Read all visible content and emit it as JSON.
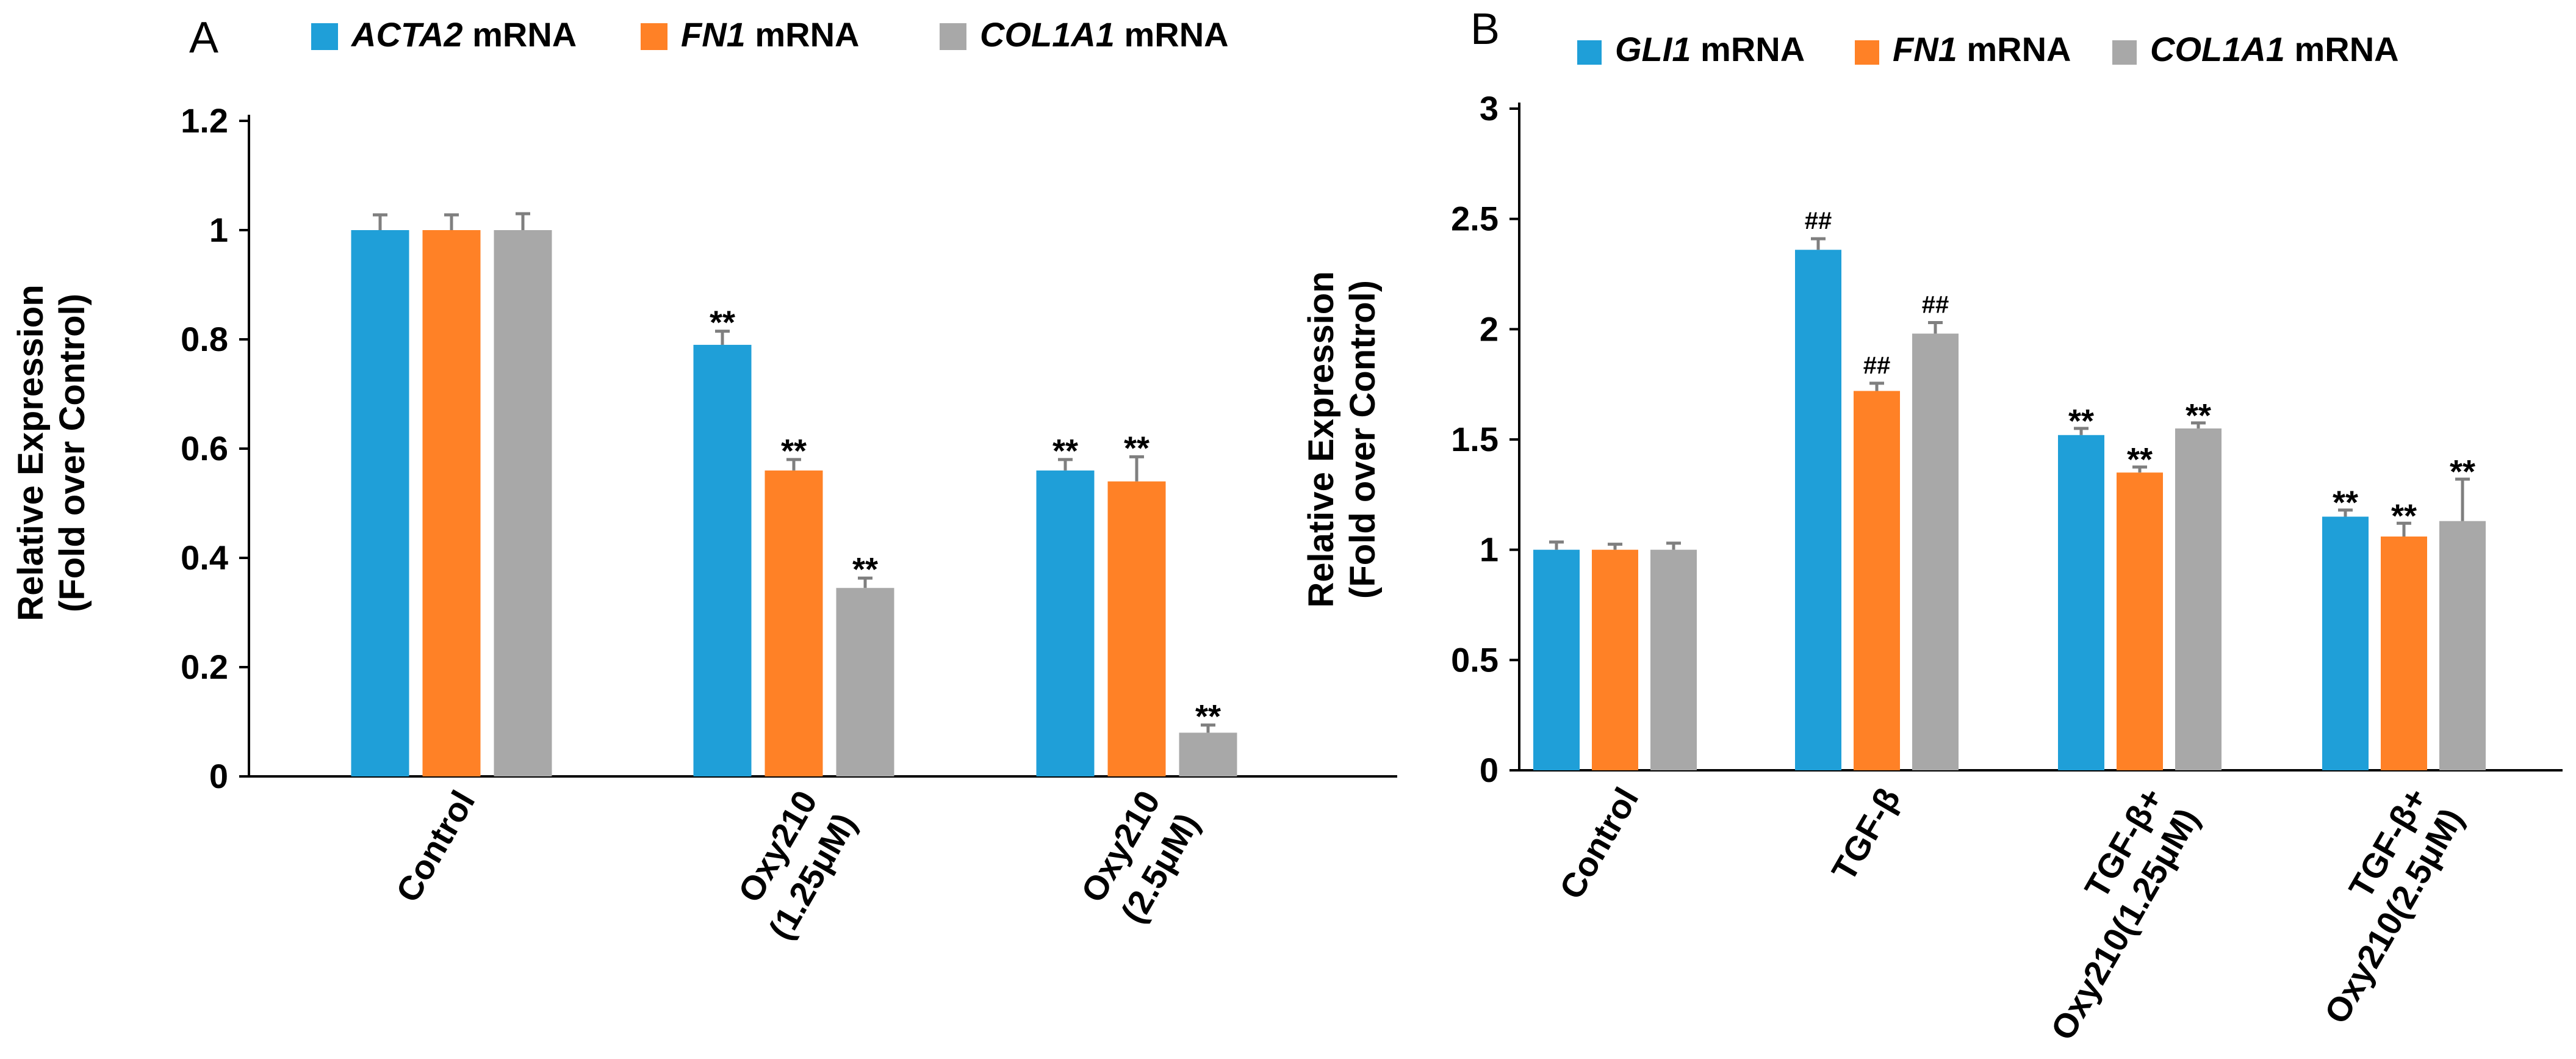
{
  "colors": {
    "series1": "#1f9fd8",
    "series2": "#ff8126",
    "series3": "#a8a8a8"
  },
  "chart_data": [
    {
      "panel": "A",
      "type": "bar",
      "ylabel_lines": [
        "Relative Expression",
        "(Fold over Control)"
      ],
      "ylim": [
        0,
        1.2
      ],
      "yticks": [
        "0",
        "0.2",
        "0.4",
        "0.6",
        "0.8",
        "1",
        "1.2"
      ],
      "ytick_values": [
        0,
        0.2,
        0.4,
        0.6,
        0.8,
        1.0,
        1.2
      ],
      "categories": [
        {
          "lines": [
            "Control"
          ]
        },
        {
          "lines": [
            "Oxy210",
            "(1.25μM)"
          ]
        },
        {
          "lines": [
            "Oxy210",
            "(2.5μM)"
          ]
        }
      ],
      "series": [
        {
          "gene": "ACTA2",
          "suffix": " mRNA",
          "values": [
            1.0,
            0.79,
            0.56
          ],
          "errors": [
            0.028,
            0.025,
            0.02
          ],
          "sig": [
            "",
            "**",
            "**"
          ]
        },
        {
          "gene": "FN1",
          "suffix": " mRNA",
          "values": [
            1.0,
            0.56,
            0.54
          ],
          "errors": [
            0.028,
            0.02,
            0.045
          ],
          "sig": [
            "",
            "**",
            "**"
          ]
        },
        {
          "gene": "COL1A1",
          "suffix": " mRNA",
          "values": [
            1.0,
            0.345,
            0.08
          ],
          "errors": [
            0.03,
            0.018,
            0.014
          ],
          "sig": [
            "",
            "**",
            "**"
          ]
        }
      ]
    },
    {
      "panel": "B",
      "type": "bar",
      "ylabel_lines": [
        "Relative Expression",
        "(Fold over Control)"
      ],
      "ylim": [
        0,
        3
      ],
      "yticks": [
        "0",
        "0.5",
        "1",
        "1.5",
        "2",
        "2.5",
        "3"
      ],
      "ytick_values": [
        0,
        0.5,
        1,
        1.5,
        2,
        2.5,
        3
      ],
      "categories": [
        {
          "lines": [
            "Control"
          ]
        },
        {
          "lines": [
            "TGF-β"
          ]
        },
        {
          "lines": [
            "TGF-β+",
            "Oxy210(1.25μM)"
          ]
        },
        {
          "lines": [
            "TGF-β+",
            "Oxy210(2.5μM)"
          ]
        }
      ],
      "series": [
        {
          "gene": "GLI1",
          "suffix": " mRNA",
          "values": [
            1.0,
            2.36,
            1.52,
            1.15
          ],
          "errors": [
            0.035,
            0.05,
            0.03,
            0.03
          ],
          "sig": [
            "",
            "##",
            "**",
            "**"
          ]
        },
        {
          "gene": "FN1",
          "suffix": " mRNA",
          "values": [
            1.0,
            1.72,
            1.35,
            1.06
          ],
          "errors": [
            0.025,
            0.035,
            0.025,
            0.06
          ],
          "sig": [
            "",
            "##",
            "**",
            "**"
          ]
        },
        {
          "gene": "COL1A1",
          "suffix": " mRNA",
          "values": [
            1.0,
            1.98,
            1.55,
            1.13
          ],
          "errors": [
            0.03,
            0.05,
            0.025,
            0.19
          ],
          "sig": [
            "",
            "##",
            "**",
            "**"
          ]
        }
      ]
    }
  ]
}
